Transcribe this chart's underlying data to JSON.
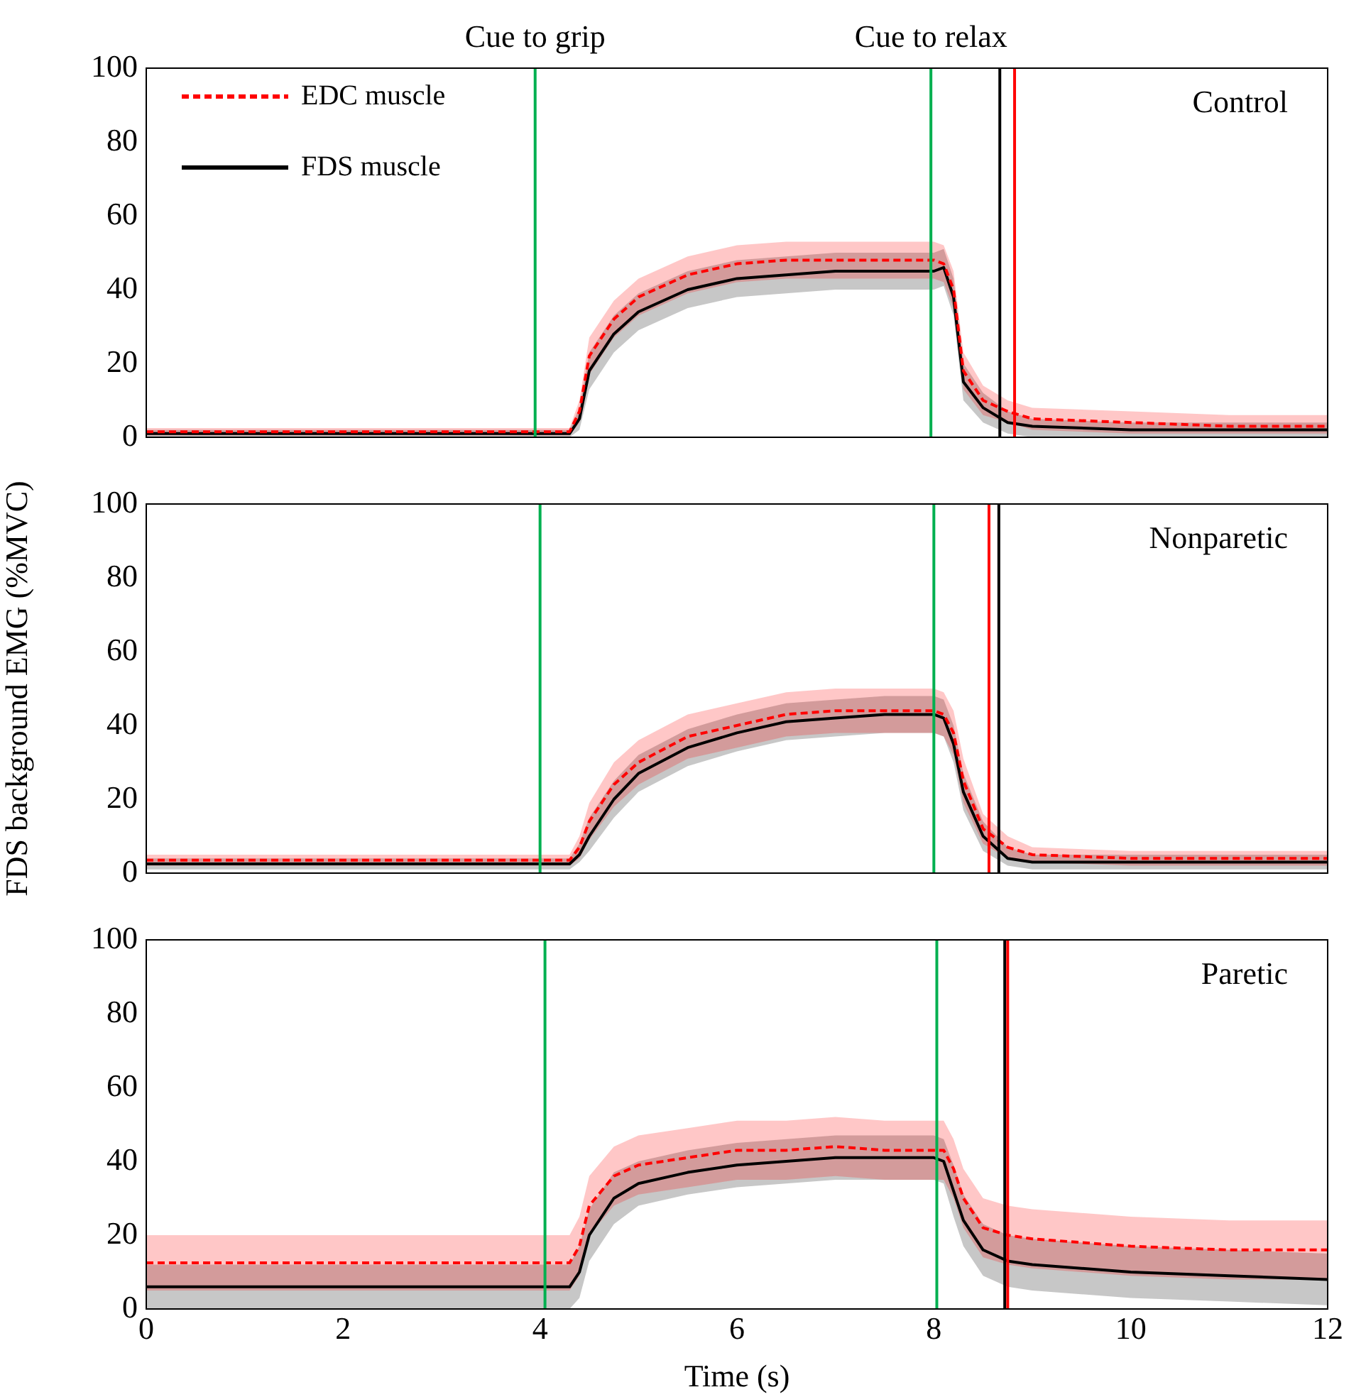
{
  "chart_data": [
    {
      "type": "line",
      "x": [
        0,
        4.3,
        4.4,
        4.5,
        4.75,
        5,
        5.5,
        6,
        6.5,
        7,
        7.5,
        8,
        8.1,
        8.2,
        8.3,
        8.5,
        8.75,
        9,
        10,
        11,
        12
      ],
      "xlim": [
        0,
        12
      ],
      "xticks": [
        0,
        2,
        4,
        6,
        8,
        10,
        12
      ],
      "ylim": [
        0,
        100
      ],
      "yticks": [
        0,
        20,
        40,
        60,
        80,
        100
      ],
      "tick_labels": "y",
      "legend": "top left",
      "annotations": [
        "Control"
      ],
      "series": [
        {
          "name": "EDC muscle",
          "color": "#ff0000",
          "line_style": "dashed",
          "values": [
            1.5,
            1.5,
            7,
            22,
            32,
            38,
            44,
            47,
            48,
            48,
            48,
            48,
            47,
            40,
            18,
            10,
            7,
            5,
            4,
            3,
            3
          ],
          "lower": [
            0.5,
            0.5,
            4,
            17,
            27,
            33,
            39,
            42,
            43,
            43,
            43,
            43,
            42,
            35,
            13,
            6,
            4,
            2,
            1,
            1,
            1
          ],
          "upper": [
            2.5,
            2.5,
            10,
            27,
            37,
            43,
            49,
            52,
            53,
            53,
            53,
            53,
            52,
            45,
            23,
            14,
            10,
            8,
            7,
            6,
            6
          ]
        },
        {
          "name": "FDS muscle",
          "color": "#000000",
          "line_style": "solid",
          "values": [
            1,
            1,
            5,
            18,
            28,
            34,
            40,
            43,
            44,
            45,
            45,
            45,
            46,
            38,
            15,
            8,
            4,
            3,
            2,
            2,
            2
          ],
          "lower": [
            0,
            0,
            2,
            13,
            23,
            29,
            35,
            38,
            39,
            40,
            40,
            40,
            41,
            33,
            10,
            4,
            1,
            0,
            0,
            0,
            0
          ],
          "upper": [
            2,
            2,
            8,
            23,
            33,
            39,
            45,
            48,
            49,
            50,
            50,
            50,
            51,
            43,
            20,
            12,
            7,
            5,
            4,
            4,
            4
          ]
        }
      ],
      "ref_lines": [
        {
          "axis": "x",
          "value": 3.95,
          "label": "Cue to grip",
          "color": "#00b050"
        },
        {
          "axis": "x",
          "value": 7.97,
          "label": "Cue to relax",
          "color": "#00b050"
        },
        {
          "axis": "x",
          "value": 8.67,
          "color": "#000000"
        },
        {
          "axis": "x",
          "value": 8.82,
          "color": "#ff0000"
        }
      ]
    },
    {
      "type": "line",
      "x": [
        0,
        4.3,
        4.4,
        4.5,
        4.75,
        5,
        5.5,
        6,
        6.5,
        7,
        7.5,
        8,
        8.1,
        8.2,
        8.3,
        8.5,
        8.75,
        9,
        10,
        11,
        12
      ],
      "xlim": [
        0,
        12
      ],
      "xticks": [
        0,
        2,
        4,
        6,
        8,
        10,
        12
      ],
      "ylim": [
        0,
        100
      ],
      "yticks": [
        0,
        20,
        40,
        60,
        80,
        100
      ],
      "tick_labels": "y",
      "ylabel": "FDS background EMG (%MVC)",
      "annotations": [
        "Nonparetic"
      ],
      "series": [
        {
          "color": "#ff0000",
          "line_style": "dashed",
          "values": [
            3.5,
            3.5,
            7,
            14,
            24,
            30,
            37,
            40,
            43,
            44,
            44,
            44,
            43,
            38,
            25,
            12,
            7,
            5,
            4,
            4,
            4
          ],
          "lower": [
            2,
            2,
            4,
            9,
            18,
            24,
            31,
            34,
            37,
            38,
            38,
            38,
            37,
            32,
            19,
            8,
            4,
            3,
            2,
            2,
            2
          ],
          "upper": [
            5,
            5,
            10,
            19,
            30,
            36,
            43,
            46,
            49,
            50,
            50,
            50,
            49,
            44,
            31,
            16,
            10,
            7,
            6,
            6,
            6
          ]
        },
        {
          "color": "#000000",
          "line_style": "solid",
          "values": [
            2.5,
            2.5,
            5,
            10,
            20,
            27,
            34,
            38,
            41,
            42,
            43,
            43,
            42,
            35,
            22,
            10,
            4,
            3,
            3,
            3,
            3
          ],
          "lower": [
            1,
            1,
            3,
            6,
            15,
            22,
            29,
            33,
            36,
            37,
            38,
            38,
            37,
            30,
            17,
            6,
            2,
            1,
            1,
            1,
            1
          ],
          "upper": [
            4,
            4,
            8,
            15,
            25,
            32,
            39,
            43,
            46,
            47,
            48,
            48,
            47,
            40,
            27,
            14,
            7,
            5,
            5,
            5,
            5
          ]
        }
      ],
      "ref_lines": [
        {
          "axis": "x",
          "value": 4.0,
          "color": "#00b050"
        },
        {
          "axis": "x",
          "value": 8.0,
          "color": "#00b050"
        },
        {
          "axis": "x",
          "value": 8.66,
          "color": "#000000"
        },
        {
          "axis": "x",
          "value": 8.56,
          "color": "#ff0000"
        }
      ]
    },
    {
      "type": "line",
      "x": [
        0,
        4.3,
        4.4,
        4.5,
        4.75,
        5,
        5.5,
        6,
        6.5,
        7,
        7.5,
        8,
        8.1,
        8.2,
        8.3,
        8.5,
        8.75,
        9,
        10,
        11,
        12
      ],
      "xlim": [
        0,
        12
      ],
      "xticks": [
        0,
        2,
        4,
        6,
        8,
        10,
        12
      ],
      "ylim": [
        0,
        100
      ],
      "yticks": [
        0,
        20,
        40,
        60,
        80,
        100
      ],
      "xlabel": "Time (s)",
      "annotations": [
        "Paretic"
      ],
      "series": [
        {
          "color": "#ff0000",
          "line_style": "dashed",
          "values": [
            12.5,
            12.5,
            17,
            28,
            36,
            39,
            41,
            43,
            43,
            44,
            43,
            43,
            43,
            38,
            30,
            22,
            20,
            19,
            17,
            16,
            16
          ],
          "lower": [
            5,
            5,
            9,
            20,
            28,
            31,
            33,
            35,
            35,
            36,
            35,
            35,
            35,
            30,
            22,
            14,
            12,
            11,
            9,
            8,
            8
          ],
          "upper": [
            20,
            20,
            25,
            36,
            44,
            47,
            49,
            51,
            51,
            52,
            51,
            51,
            51,
            46,
            38,
            30,
            28,
            27,
            25,
            24,
            24
          ]
        },
        {
          "color": "#000000",
          "line_style": "solid",
          "values": [
            6,
            6,
            10,
            20,
            30,
            34,
            37,
            39,
            40,
            41,
            41,
            41,
            40,
            32,
            24,
            16,
            13,
            12,
            10,
            9,
            8
          ],
          "lower": [
            0,
            0,
            3,
            13,
            23,
            28,
            31,
            33,
            34,
            35,
            35,
            35,
            34,
            25,
            17,
            9,
            6,
            5,
            3,
            2,
            1
          ],
          "upper": [
            12,
            12,
            17,
            27,
            37,
            40,
            43,
            45,
            46,
            47,
            47,
            47,
            46,
            39,
            31,
            23,
            20,
            19,
            17,
            16,
            15
          ]
        }
      ],
      "ref_lines": [
        {
          "axis": "x",
          "value": 4.05,
          "color": "#00b050"
        },
        {
          "axis": "x",
          "value": 8.03,
          "color": "#00b050"
        },
        {
          "axis": "x",
          "value": 8.72,
          "color": "#000000"
        },
        {
          "axis": "x",
          "value": 8.75,
          "color": "#ff0000"
        }
      ]
    }
  ]
}
